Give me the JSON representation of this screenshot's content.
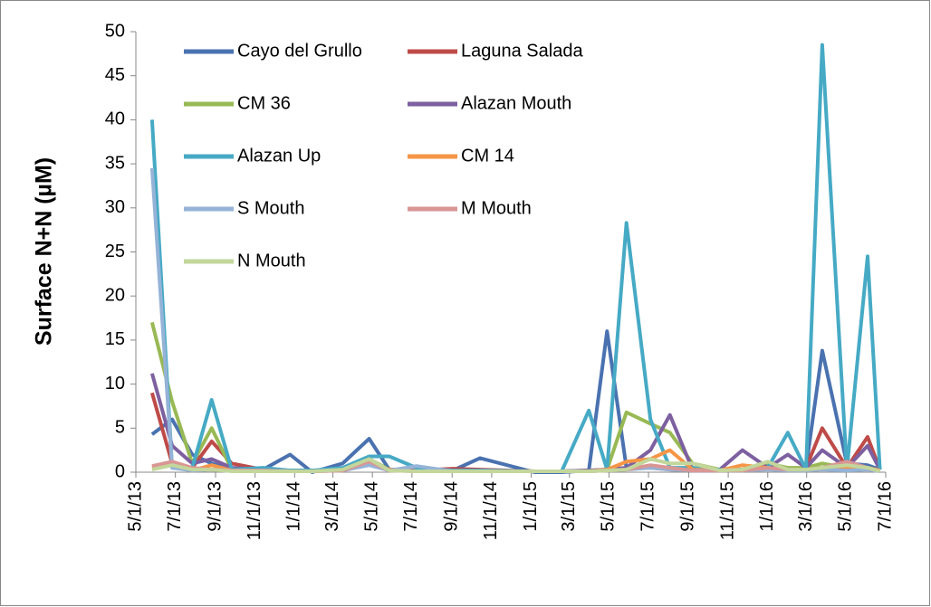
{
  "chart_data": {
    "type": "line",
    "y_label": "Surface N+N (µM)",
    "x": [
      "5/26/13",
      "6/26/13",
      "7/27/13",
      "8/26/13",
      "9/26/13",
      "11/13/13",
      "12/25/13",
      "1/28/14",
      "3/16/14",
      "4/26/14",
      "5/27/14",
      "7/8/14",
      "9/2/14",
      "10/14/14",
      "1/6/15",
      "2/17/15",
      "3/31/15",
      "4/28/15",
      "5/28/15",
      "7/4/15",
      "8/3/15",
      "9/7/15",
      "10/19/15",
      "11/23/15",
      "1/1/16",
      "2/1/16",
      "2/29/16",
      "3/25/16",
      "5/2/16",
      "6/3/16",
      "6/22/16"
    ],
    "xlim": [
      "5/1/13",
      "7/1/16"
    ],
    "xticks": [
      "5/1/13",
      "7/1/13",
      "9/1/13",
      "11/1/13",
      "1/1/14",
      "3/1/14",
      "5/1/14",
      "7/1/14",
      "9/1/14",
      "11/1/14",
      "1/1/15",
      "3/1/15",
      "5/1/15",
      "7/1/15",
      "9/1/15",
      "11/1/15",
      "1/1/16",
      "3/1/16",
      "5/1/16",
      "7/1/16"
    ],
    "ylim": [
      0,
      50
    ],
    "yticks": [
      0,
      5,
      10,
      15,
      20,
      25,
      30,
      35,
      40,
      45,
      50
    ],
    "grid": false,
    "legend": "top",
    "series": [
      {
        "name": "Cayo del Grullo",
        "color": "#4a72b0",
        "values": [
          4.3,
          6,
          2,
          1,
          0.3,
          0.3,
          2,
          0,
          1,
          3.8,
          0.3,
          0.2,
          0.2,
          1.6,
          0,
          0,
          0.2,
          16,
          0.5,
          0.5,
          0.5,
          0.3,
          0.2,
          0.3,
          0.5,
          0.3,
          0.5,
          13.8,
          1,
          0.8,
          0.3
        ]
      },
      {
        "name": "Laguna Salada",
        "color": "#be4b48",
        "values": [
          9,
          1,
          0.5,
          3.5,
          1,
          0.3,
          0.2,
          0.2,
          0.3,
          1.2,
          0.3,
          0.2,
          0.4,
          0.3,
          0.1,
          0.1,
          0.2,
          0.3,
          0.5,
          0.5,
          0.3,
          0.2,
          0.2,
          0.3,
          0.5,
          0.3,
          0.5,
          5,
          0.5,
          4,
          0.3
        ]
      },
      {
        "name": "CM 36",
        "color": "#98b954",
        "values": [
          17,
          8,
          1,
          5,
          0.3,
          0.3,
          0.2,
          0.2,
          0.3,
          1.5,
          0.3,
          0.2,
          0.2,
          0.2,
          0.1,
          0.1,
          0.2,
          0.3,
          6.8,
          5.5,
          4.5,
          1,
          0.3,
          0.3,
          1,
          0.5,
          0.5,
          1,
          0.5,
          0.5,
          0.2
        ]
      },
      {
        "name": "Alazan Mouth",
        "color": "#7d60a0",
        "values": [
          11.2,
          3,
          1,
          1.5,
          0.5,
          0.3,
          0.2,
          0.2,
          0.3,
          1.2,
          0.3,
          0.2,
          0.2,
          0.2,
          0.1,
          0.1,
          0.2,
          0.3,
          0.5,
          2.5,
          6.5,
          0.3,
          0.3,
          2.5,
          0.5,
          2,
          0.5,
          2.5,
          0.5,
          3,
          0.3
        ]
      },
      {
        "name": "Alazan Up",
        "color": "#46aac5",
        "values": [
          40,
          0.5,
          0.5,
          8.2,
          0.3,
          0.5,
          0.2,
          0.2,
          0.5,
          1.8,
          1.8,
          0.5,
          0.2,
          0.2,
          0.1,
          0.1,
          7,
          0.3,
          28.3,
          6,
          0.5,
          0.5,
          0.3,
          0.3,
          0.5,
          4.5,
          0.3,
          48.5,
          0.3,
          24.5,
          0.3
        ]
      },
      {
        "name": "CM 14",
        "color": "#f69546",
        "values": [
          0.5,
          0.8,
          0.2,
          0.8,
          0.2,
          0.2,
          0.1,
          0.1,
          0.2,
          1,
          0.3,
          0.1,
          0.1,
          0.1,
          0.1,
          0.1,
          0.1,
          0.3,
          1.2,
          1.5,
          2.5,
          0.3,
          0.2,
          0.8,
          0.5,
          0.3,
          0.3,
          0.5,
          0.5,
          0.5,
          0.2
        ]
      },
      {
        "name": "S Mouth",
        "color": "#95b3d7",
        "values": [
          34.5,
          0.5,
          0.2,
          0.3,
          0.2,
          0.2,
          0.1,
          0.1,
          0.2,
          0.8,
          0.2,
          0.7,
          0.1,
          0.1,
          0.1,
          0.1,
          0.1,
          0.2,
          0.3,
          0.5,
          0.3,
          0.2,
          0.2,
          0.2,
          0.3,
          0.2,
          0.2,
          0.3,
          0.2,
          0.3,
          0.1
        ]
      },
      {
        "name": "M Mouth",
        "color": "#d99694",
        "values": [
          0.7,
          1.2,
          0.5,
          0.3,
          0.2,
          0.2,
          0.1,
          0.1,
          0.2,
          1.2,
          0.2,
          0.1,
          0.1,
          0.1,
          0.1,
          0.1,
          0.1,
          0.2,
          0.3,
          0.8,
          0.5,
          0.2,
          0.2,
          0.2,
          0.5,
          0.3,
          0.3,
          0.5,
          1.2,
          0.5,
          0.1
        ]
      },
      {
        "name": "N Mouth",
        "color": "#c3d69b",
        "values": [
          0.3,
          0.8,
          0.3,
          0.3,
          0.1,
          0.1,
          0.1,
          0.1,
          0.3,
          1.5,
          0.2,
          0.1,
          0.1,
          0.1,
          0.1,
          0.1,
          0.1,
          0.2,
          0.3,
          1.5,
          1,
          1,
          0.2,
          0.3,
          1.2,
          0.3,
          0.3,
          0.5,
          0.8,
          0.5,
          0.1
        ]
      }
    ]
  }
}
